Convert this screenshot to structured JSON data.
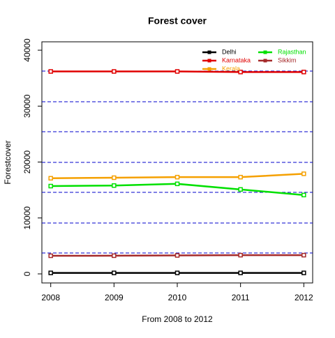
{
  "chart_data": {
    "type": "line",
    "title": "Forest cover",
    "xlabel": "From 2008 to 2012",
    "ylabel": "Forestcover",
    "x": [
      2008,
      2009,
      2010,
      2011,
      2012
    ],
    "series": [
      {
        "name": "Delhi",
        "color": "#000000",
        "values": [
          177,
          177,
          176,
          177,
          177
        ]
      },
      {
        "name": "Karnataka",
        "color": "#e00000",
        "values": [
          36200,
          36200,
          36200,
          36100,
          36100
        ]
      },
      {
        "name": "Kerala",
        "color": "#f5a000",
        "values": [
          17100,
          17200,
          17300,
          17300,
          17900
        ]
      },
      {
        "name": "Rajasthan",
        "color": "#00e000",
        "values": [
          15700,
          15800,
          16100,
          15100,
          14100
        ]
      },
      {
        "name": "Sikkim",
        "color": "#a52a2a",
        "values": [
          3240,
          3250,
          3300,
          3350,
          3350
        ]
      }
    ],
    "hlines": [
      36260,
      30780,
      25420,
      19940,
      14580,
      9100,
      3740
    ],
    "hline_color": "#0000cc",
    "xlim": [
      2007.86,
      2012.14
    ],
    "xticks": [
      2008,
      2009,
      2010,
      2011,
      2012
    ],
    "ylim": [
      -1620,
      41500
    ],
    "yticks": [
      0,
      10000,
      20000,
      30000,
      40000
    ],
    "legend": "top-right"
  }
}
